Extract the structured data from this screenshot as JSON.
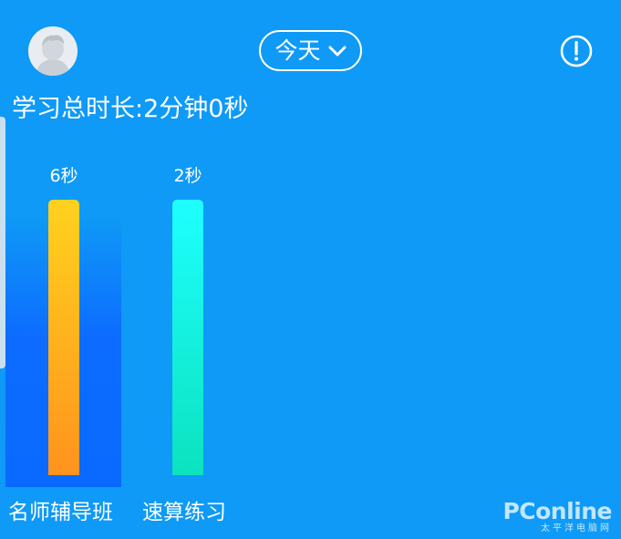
{
  "header": {
    "date_selector": "今天",
    "icons": {
      "avatar": "user-avatar",
      "dropdown": "chevron-down-icon",
      "info": "info-icon"
    }
  },
  "summary": {
    "total_time": "学习总时长:2分钟0秒"
  },
  "chart_data": {
    "type": "bar",
    "categories": [
      "名师辅导班",
      "速算练习"
    ],
    "values": [
      6,
      2
    ],
    "data_labels": [
      "6秒",
      "2秒"
    ],
    "unit": "秒",
    "selected_category": "名师辅导班",
    "colors": [
      "#FFB81E",
      "#14F0D8"
    ]
  },
  "watermark": {
    "logo": "PConline",
    "subtitle": "太平洋电脑网"
  },
  "colors": {
    "background": "#0E9AF6",
    "selected_column": "#0D6CFF"
  }
}
